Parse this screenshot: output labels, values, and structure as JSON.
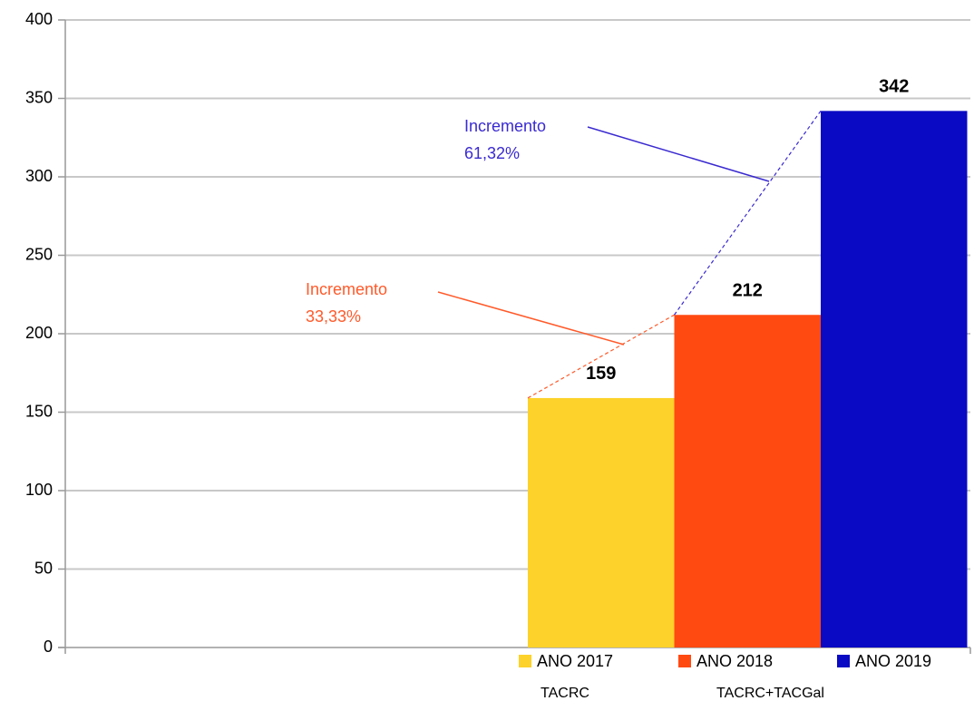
{
  "chart_data": {
    "type": "bar",
    "series": [
      {
        "name": "ANO 2017",
        "color": "#fdd22a",
        "values": [
          159
        ]
      },
      {
        "name": "ANO 2018",
        "color": "#ff4a12",
        "values": [
          212
        ]
      },
      {
        "name": "ANO 2019",
        "color": "#0a0ac4",
        "values": [
          342
        ]
      }
    ],
    "ylim": [
      0,
      400
    ],
    "yticks": [
      0,
      50,
      100,
      150,
      200,
      250,
      300,
      350,
      400
    ],
    "grid": true,
    "legend": "bottom",
    "legend_captions": [
      "TACRC",
      "TACRC+TACGal"
    ],
    "annotations": [
      {
        "lines": [
          "Incremento",
          "33,33%"
        ],
        "color": "#ff5a2a"
      },
      {
        "lines": [
          "Incremento",
          "61,32%"
        ],
        "color": "#3a2ad0"
      }
    ]
  }
}
